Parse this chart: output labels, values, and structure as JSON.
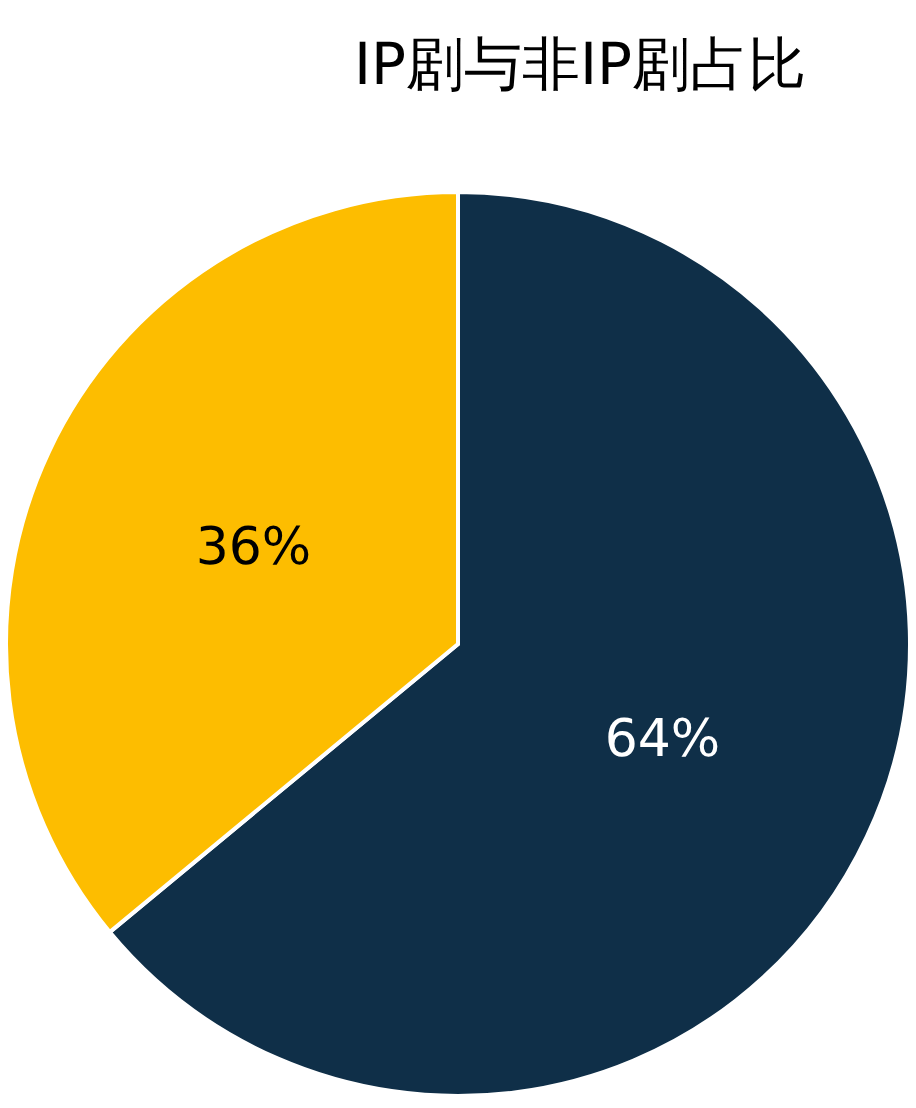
{
  "chart_data": {
    "type": "pie",
    "title": "IP剧与非IP剧占比",
    "categories": [
      null,
      null
    ],
    "values": [
      64,
      36
    ],
    "colors": [
      "#0f2f48",
      "#fdbd00"
    ],
    "value_labels": [
      "64%",
      "36%"
    ]
  }
}
